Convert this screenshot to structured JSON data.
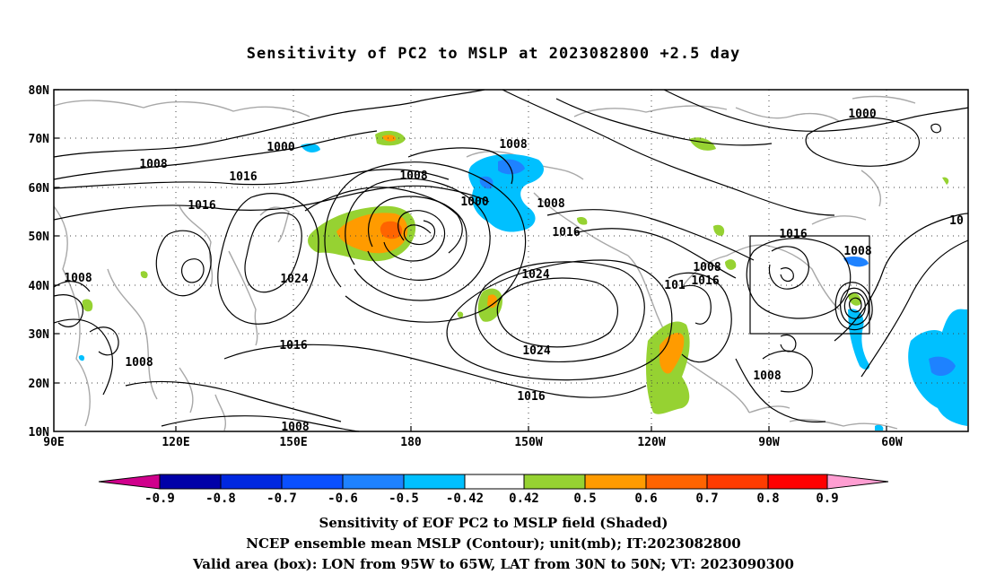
{
  "title": "Sensitivity of PC2 to MSLP at 2023082800 +2.5 day",
  "lat_labels": [
    "80N",
    "70N",
    "60N",
    "50N",
    "40N",
    "30N",
    "20N",
    "10N"
  ],
  "lon_labels": [
    "90E",
    "120E",
    "150E",
    "180",
    "150W",
    "120W",
    "90W",
    "60W"
  ],
  "isobar_labels": [
    "1000",
    "1008",
    "1016",
    "1008",
    "1016",
    "1008",
    "1000",
    "1008",
    "1016",
    "1024",
    "1016",
    "1008",
    "1008",
    "1024",
    "1024",
    "1016",
    "1008",
    "1016",
    "1016",
    "1008",
    "1016",
    "1008",
    "1008",
    "1000",
    "1008",
    "101",
    "10"
  ],
  "colorbar": {
    "labels": [
      "-0.9",
      "-0.8",
      "-0.7",
      "-0.6",
      "-0.5",
      "-0.42",
      "0.42",
      "0.5",
      "0.6",
      "0.7",
      "0.8",
      "0.9"
    ],
    "colors": [
      "#d0008c",
      "#0000a8",
      "#0028e0",
      "#0a50ff",
      "#1e82ff",
      "#00c0ff",
      "#ffffff",
      "#96d232",
      "#ff9b00",
      "#ff6400",
      "#ff3c00",
      "#ff0000",
      "#ff9ed2"
    ]
  },
  "captions": [
    "Sensitivity of EOF PC2 to MSLP field (Shaded)",
    "NCEP ensemble mean MSLP (Contour); unit(mb); IT:2023082800",
    "Valid area (box): LON from 95W to 65W, LAT from 30N to 50N; VT: 2023090300"
  ]
}
